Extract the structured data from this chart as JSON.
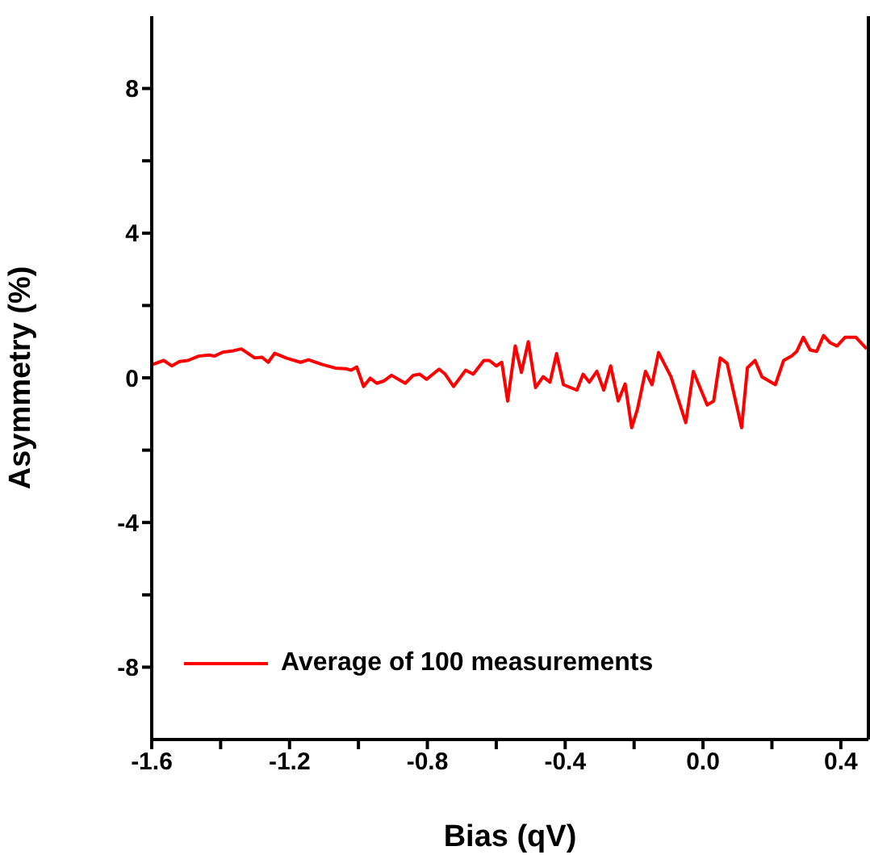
{
  "chart_data": {
    "type": "line",
    "xlabel": "Bias (qV)",
    "ylabel": "Asymmetry (%)",
    "xlim": [
      -1.6,
      0.48
    ],
    "xticks": [
      -1.6,
      {
        "value": -1.4,
        "label": null
      },
      -1.2,
      {
        "value": -1.0,
        "label": null
      },
      -0.8,
      {
        "value": -0.6,
        "label": null
      },
      -0.4,
      {
        "value": -0.2,
        "label": null
      },
      {
        "value": 0,
        "label": "0.0"
      },
      {
        "value": 0.2,
        "label": null
      },
      0.4
    ],
    "ylim": [
      -10,
      10
    ],
    "yticks": [
      -8,
      {
        "value": -6,
        "label": null
      },
      -4,
      {
        "value": -2,
        "label": null
      },
      0,
      {
        "value": 2,
        "label": null
      },
      4,
      {
        "value": 6,
        "label": null
      },
      8
    ],
    "legend": "bottom left",
    "marker": "none",
    "line_style": "solid",
    "series": [
      {
        "name": "Average of 100 measurements",
        "color": "#ff0000",
        "x": [
          -1.597,
          -1.565,
          -1.542,
          -1.519,
          -1.495,
          -1.464,
          -1.433,
          -1.418,
          -1.394,
          -1.363,
          -1.34,
          -1.301,
          -1.28,
          -1.262,
          -1.243,
          -1.207,
          -1.168,
          -1.145,
          -1.106,
          -1.067,
          -1.036,
          -1.021,
          -1.005,
          -0.985,
          -0.966,
          -0.947,
          -0.927,
          -0.904,
          -0.864,
          -0.841,
          -0.822,
          -0.802,
          -0.766,
          -0.748,
          -0.724,
          -0.689,
          -0.667,
          -0.636,
          -0.62,
          -0.6,
          -0.584,
          -0.567,
          -0.545,
          -0.527,
          -0.507,
          -0.486,
          -0.464,
          -0.444,
          -0.425,
          -0.405,
          -0.366,
          -0.348,
          -0.33,
          -0.308,
          -0.288,
          -0.268,
          -0.246,
          -0.226,
          -0.207,
          -0.19,
          -0.167,
          -0.148,
          -0.129,
          -0.093,
          -0.05,
          -0.028,
          0.012,
          0.031,
          0.05,
          0.07,
          0.112,
          0.129,
          0.151,
          0.171,
          0.21,
          0.234,
          0.257,
          0.272,
          0.291,
          0.311,
          0.33,
          0.35,
          0.369,
          0.389,
          0.412,
          0.444,
          0.475
        ],
        "values": [
          0.37,
          0.48,
          0.33,
          0.45,
          0.48,
          0.6,
          0.63,
          0.6,
          0.71,
          0.75,
          0.8,
          0.55,
          0.57,
          0.43,
          0.68,
          0.54,
          0.43,
          0.5,
          0.37,
          0.27,
          0.25,
          0.21,
          0.3,
          -0.24,
          -0.01,
          -0.15,
          -0.09,
          0.07,
          -0.15,
          0.07,
          0.1,
          -0.04,
          0.24,
          0.1,
          -0.24,
          0.21,
          0.1,
          0.48,
          0.48,
          0.33,
          0.43,
          -0.64,
          0.88,
          0.15,
          1.0,
          -0.27,
          0.03,
          -0.12,
          0.67,
          -0.19,
          -0.34,
          0.1,
          -0.12,
          0.18,
          -0.34,
          0.33,
          -0.64,
          -0.17,
          -1.38,
          -0.86,
          0.18,
          -0.19,
          0.7,
          0.03,
          -1.24,
          0.18,
          -0.75,
          -0.64,
          0.55,
          0.4,
          -1.38,
          0.28,
          0.48,
          0.03,
          -0.19,
          0.48,
          0.6,
          0.73,
          1.12,
          0.77,
          0.73,
          1.17,
          0.97,
          0.88,
          1.12,
          1.12,
          0.8
        ]
      }
    ]
  }
}
